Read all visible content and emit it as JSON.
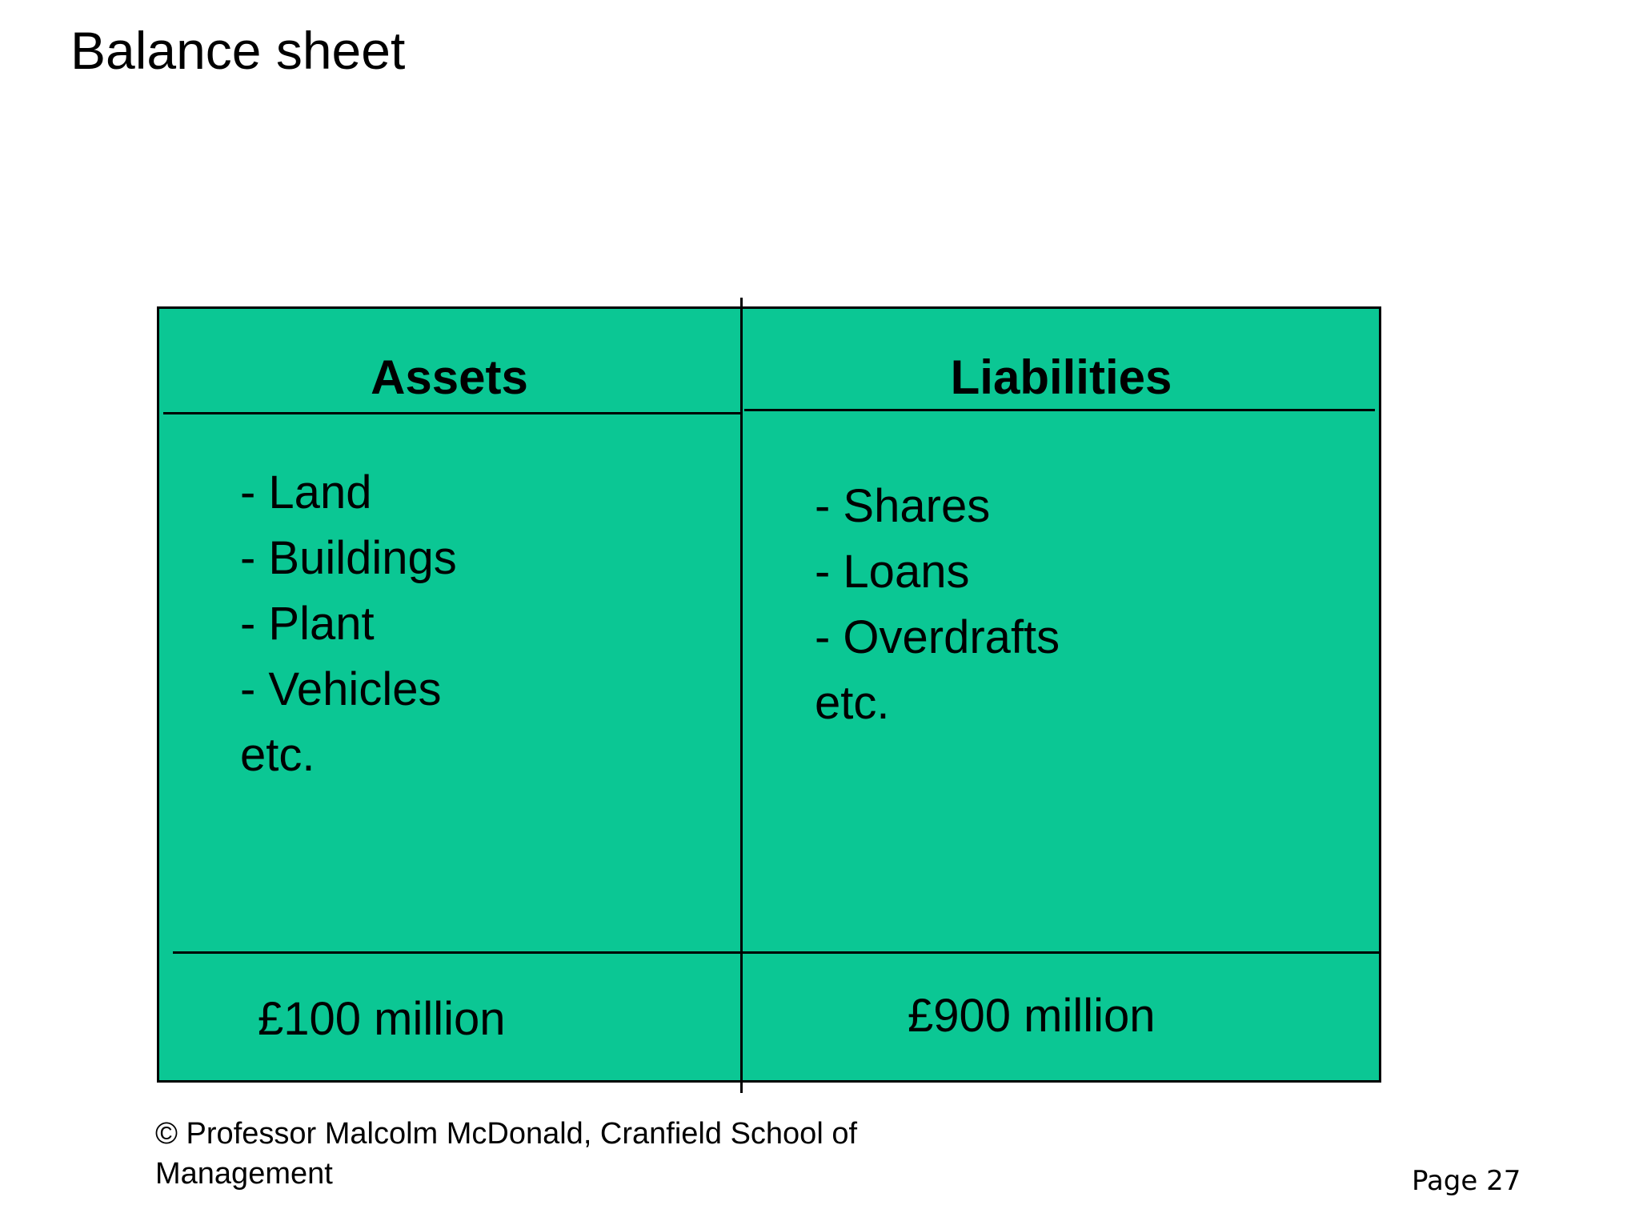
{
  "slide": {
    "title": "Balance sheet",
    "footer_copyright": "© Professor Malcolm McDonald, Cranfield School of Management",
    "page_label": "Page 27"
  },
  "table": {
    "columns": [
      {
        "header": "Assets",
        "items": [
          "- Land",
          "- Buildings",
          "- Plant",
          "- Vehicles",
          "etc."
        ],
        "total": "£100 million"
      },
      {
        "header": "Liabilities",
        "items": [
          "- Shares",
          "- Loans",
          "- Overdrafts",
          "etc."
        ],
        "total": "£900 million"
      }
    ]
  },
  "colors": {
    "table_fill": "#0bc794",
    "line": "#000000",
    "background": "#ffffff",
    "text": "#000000"
  }
}
